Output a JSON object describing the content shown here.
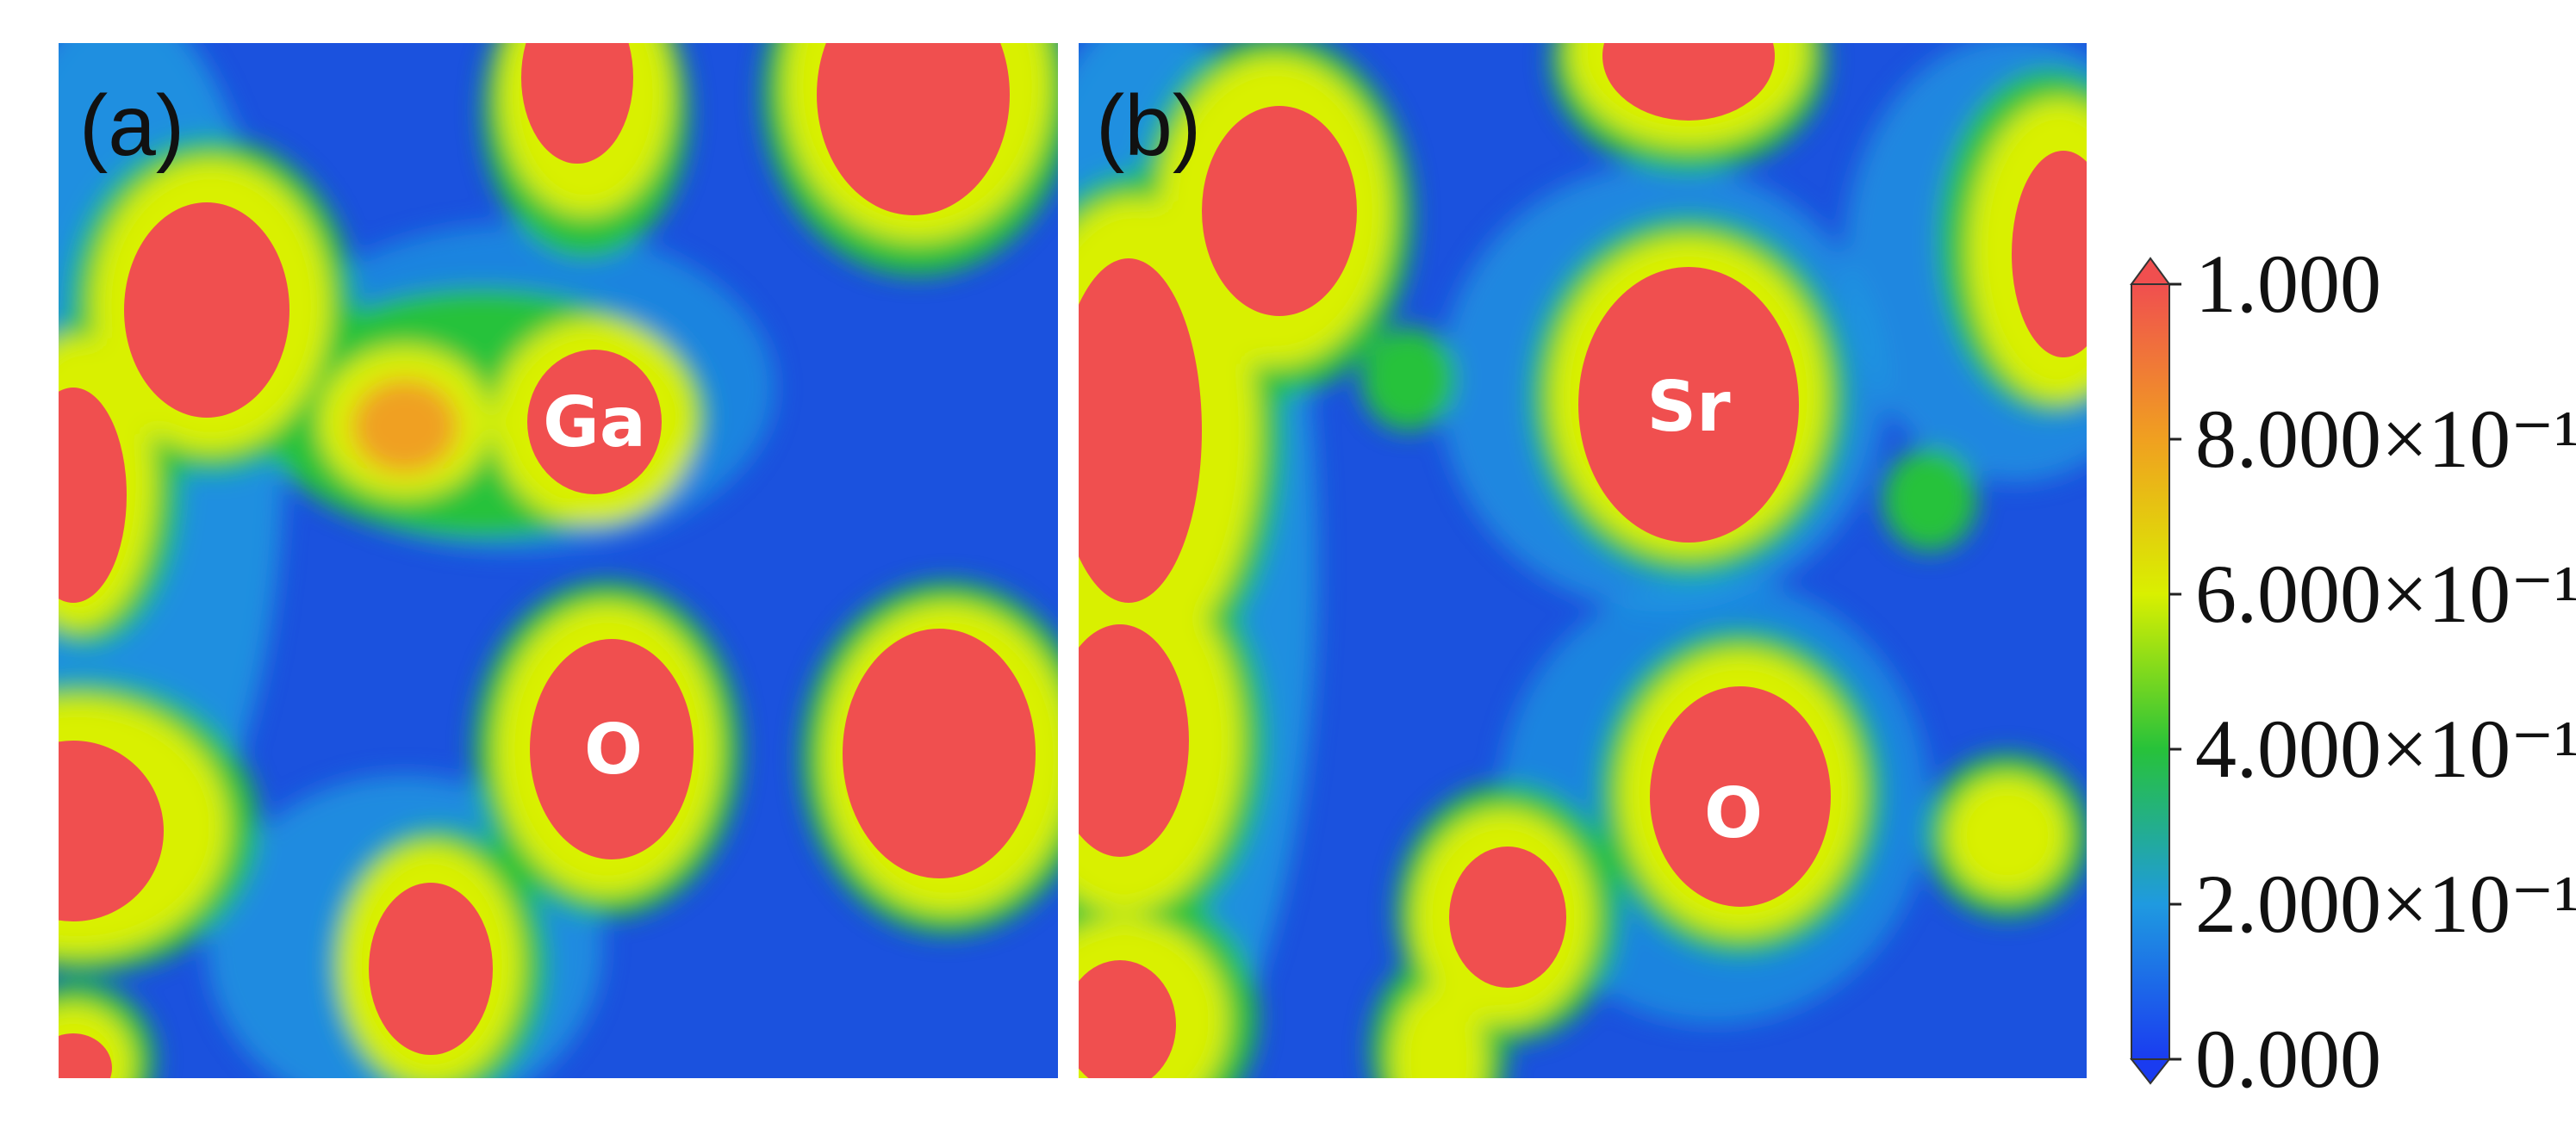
{
  "chart_data": {
    "type": "heatmap",
    "panels": [
      {
        "label": "(a)",
        "atom_labels": [
          "Ga",
          "O"
        ]
      },
      {
        "label": "(b)",
        "atom_labels": [
          "Sr",
          "O"
        ]
      }
    ],
    "colorbar": {
      "min": 0.0,
      "max": 1.0,
      "ticks": [
        {
          "value": 1.0,
          "label": "1.000"
        },
        {
          "value": 0.8,
          "label": "8.000×10⁻¹"
        },
        {
          "value": 0.6,
          "label": "6.000×10⁻¹"
        },
        {
          "value": 0.4,
          "label": "4.000×10⁻¹"
        },
        {
          "value": 0.2,
          "label": "2.000×10⁻¹"
        },
        {
          "value": 0.0,
          "label": "0.000"
        }
      ],
      "colors": [
        "#1a3cf0",
        "#1f9ae0",
        "#27c23a",
        "#d9f000",
        "#f0a020",
        "#f04f4f"
      ],
      "extend": "both"
    }
  }
}
